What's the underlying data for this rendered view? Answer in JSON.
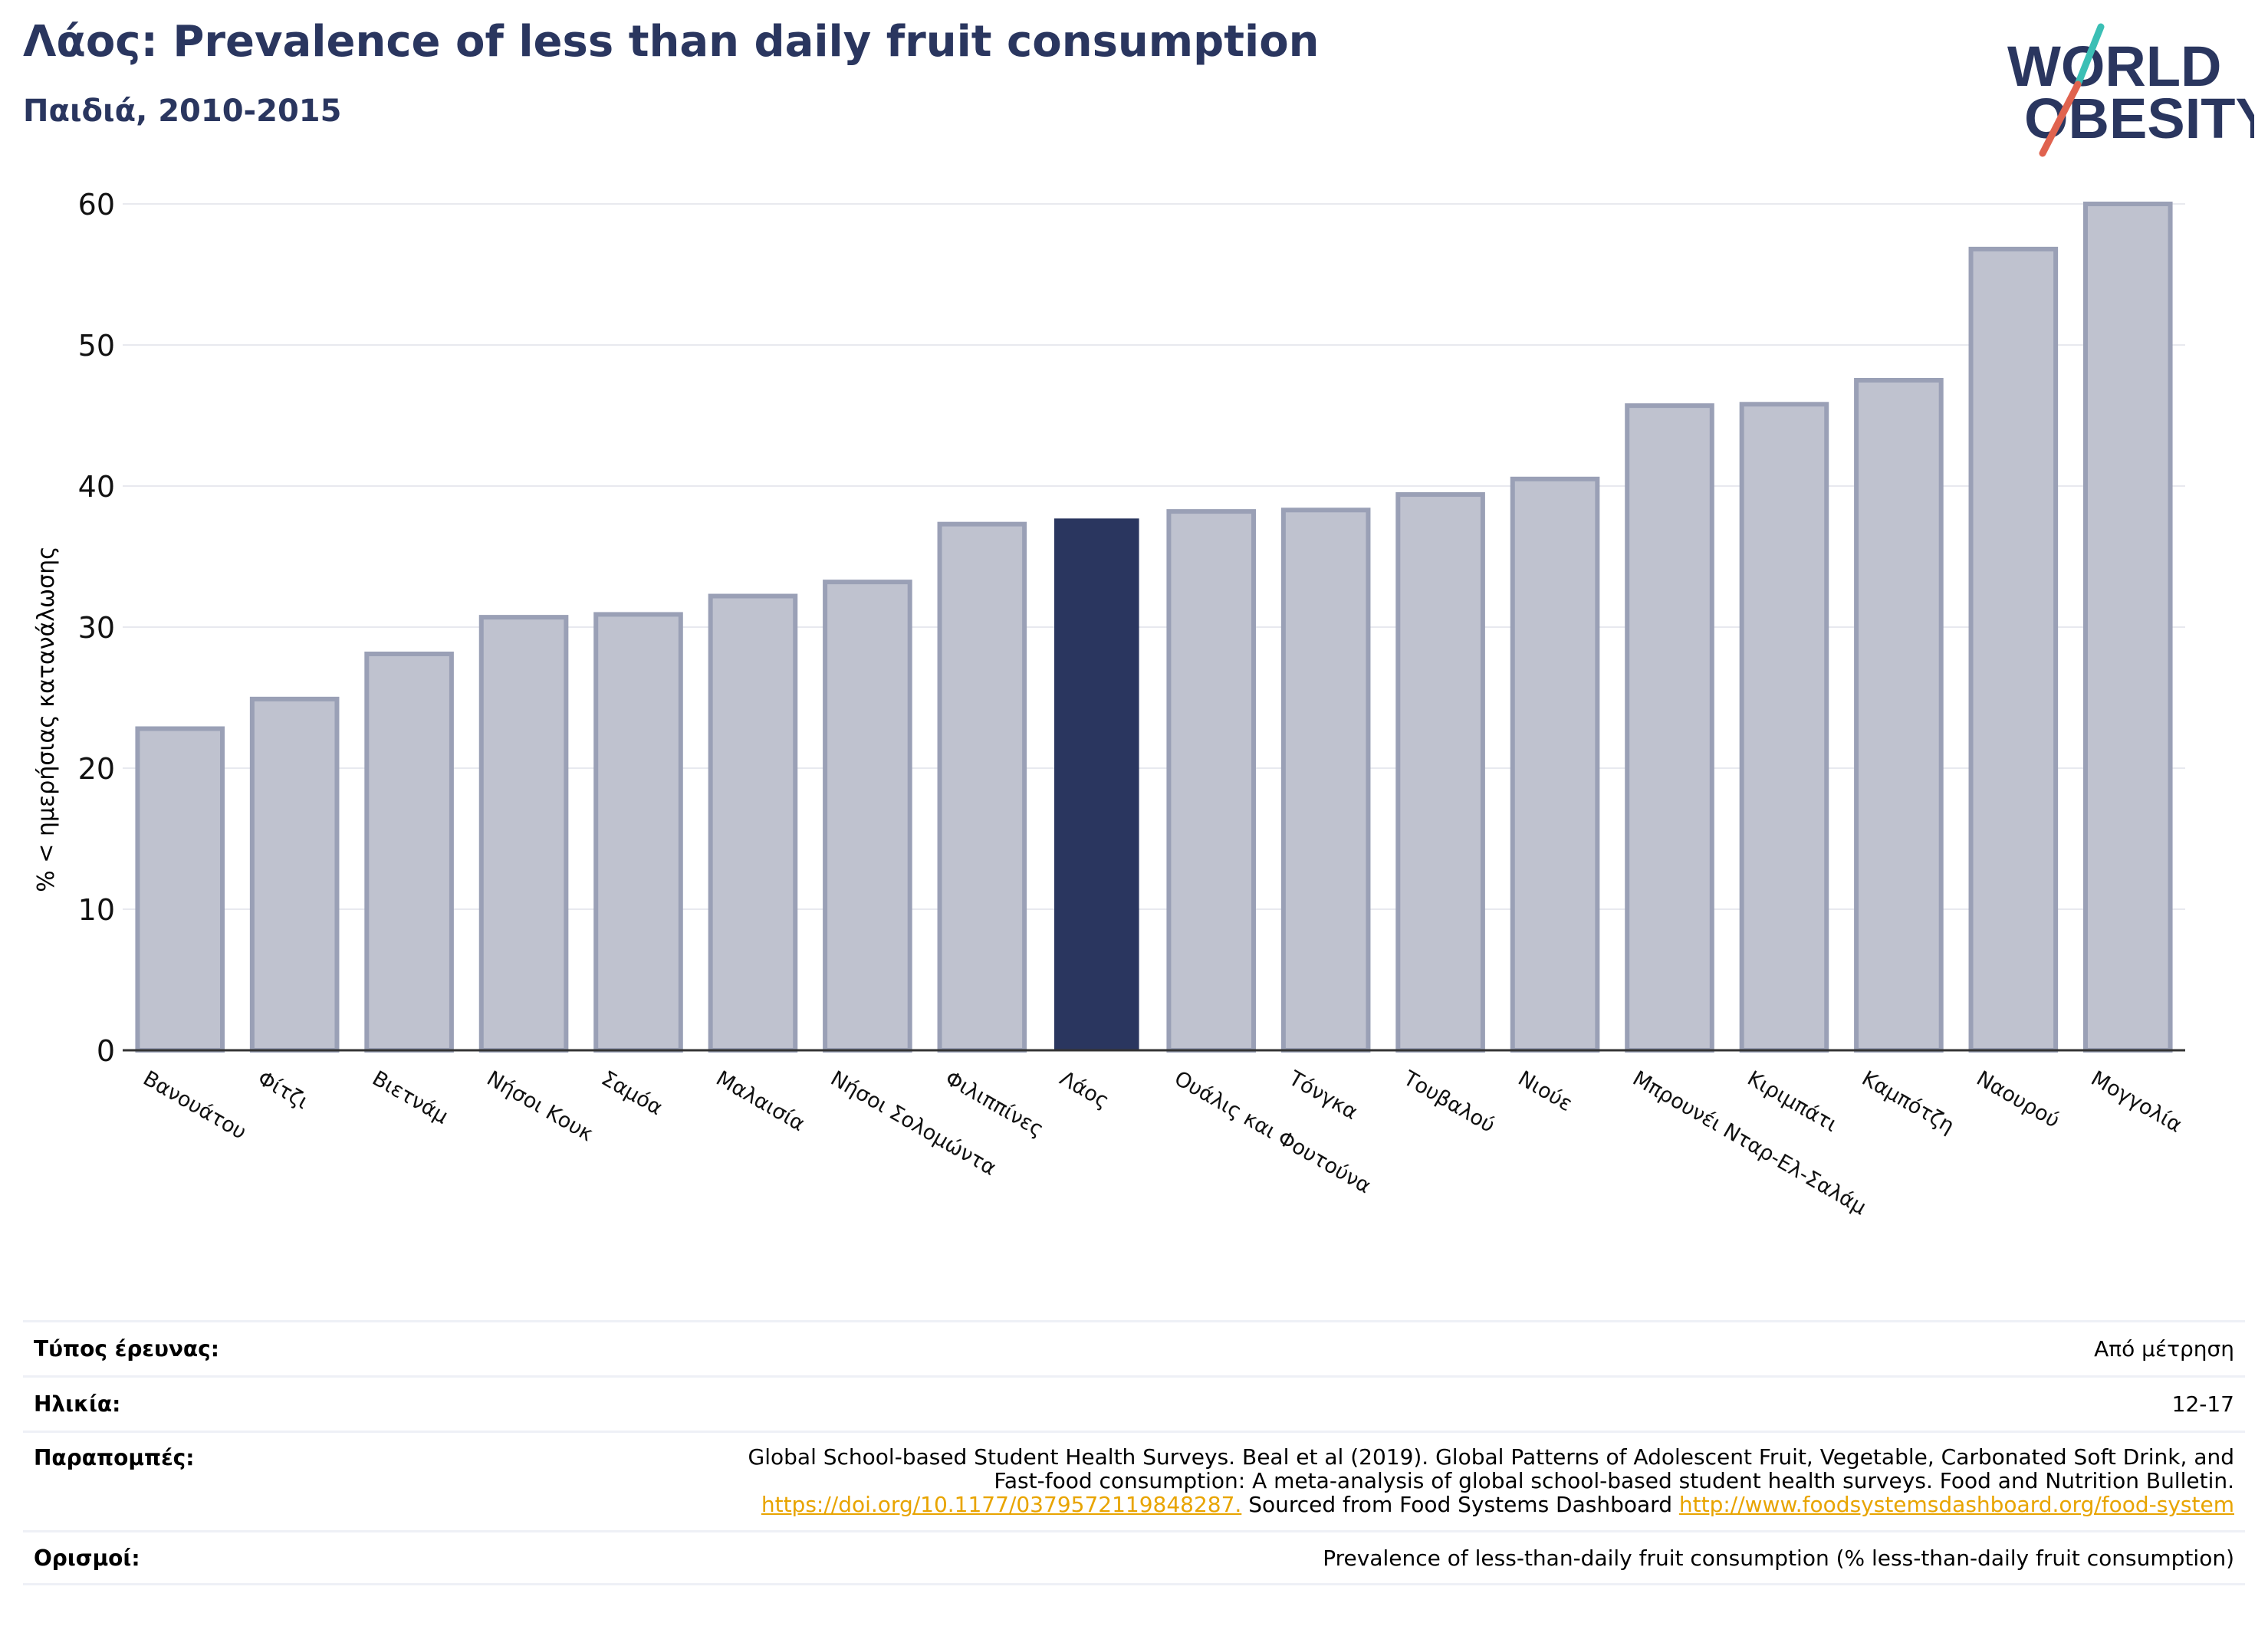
{
  "header": {
    "title": "Λάος: Prevalence of less than daily fruit consumption",
    "subtitle": "Παιδιά, 2010-2015"
  },
  "logo": {
    "line1": "WORLD",
    "line2": "OBESITY",
    "icon": "world-obesity-logo"
  },
  "colors": {
    "highlight": "#2a365f",
    "bar_fill": "#bfc2cf",
    "bar_stroke": "#9aa0b6",
    "title": "#2a365f",
    "link": "#e8a400",
    "logo_slash_teal": "#3bbfb5",
    "logo_slash_red": "#e0634f"
  },
  "chart_data": {
    "type": "bar",
    "ylabel": "% < ημερήσιας κατανάλωσης",
    "xlabel": "",
    "ylim": [
      0,
      60
    ],
    "yticks": [
      0,
      10,
      20,
      30,
      40,
      50,
      60
    ],
    "grid": true,
    "highlight_category": "Λάος",
    "categories": [
      "Βανουάτου",
      "Φίτζι",
      "Βιετνάμ",
      "Νήσοι Κουκ",
      "Σαμόα",
      "Μαλαισία",
      "Νήσοι Σολομώντα",
      "Φιλιππίνες",
      "Λάος",
      "Ουάλις και Φουτούνα",
      "Τόνγκα",
      "Τουβαλού",
      "Νιούε",
      "Μπρουνέι Νταρ-Ελ-Σαλάμ",
      "Κιριμπάτι",
      "Καμπότζη",
      "Ναουρού",
      "Μογγολία"
    ],
    "values": [
      22.8,
      24.9,
      28.1,
      30.7,
      30.9,
      32.2,
      33.2,
      37.3,
      37.7,
      38.2,
      38.3,
      39.4,
      40.5,
      45.7,
      45.8,
      47.5,
      56.8,
      60.0
    ]
  },
  "info": {
    "survey_type_label": "Τύπος έρευνας:",
    "survey_type_value": "Από μέτρηση",
    "age_label": "Ηλικία:",
    "age_value": "12-17",
    "references_label": "Παραπομπές:",
    "references_line1": "Global School-based Student Health Surveys. Beal et al (2019). Global Patterns of Adolescent Fruit, Vegetable, Carbonated Soft Drink, and",
    "references_line2": "Fast-food consumption: A meta-analysis of global school-based student health surveys. Food and Nutrition Bulletin.",
    "references_link1": "https://doi.org/10.1177/0379572119848287.",
    "references_mid": " Sourced from Food Systems Dashboard ",
    "references_link2": "http://www.foodsystemsdashboard.org/food-system",
    "definitions_label": "Ορισμοί:",
    "definitions_value": "Prevalence of less-than-daily fruit consumption (% less-than-daily fruit consumption)"
  }
}
